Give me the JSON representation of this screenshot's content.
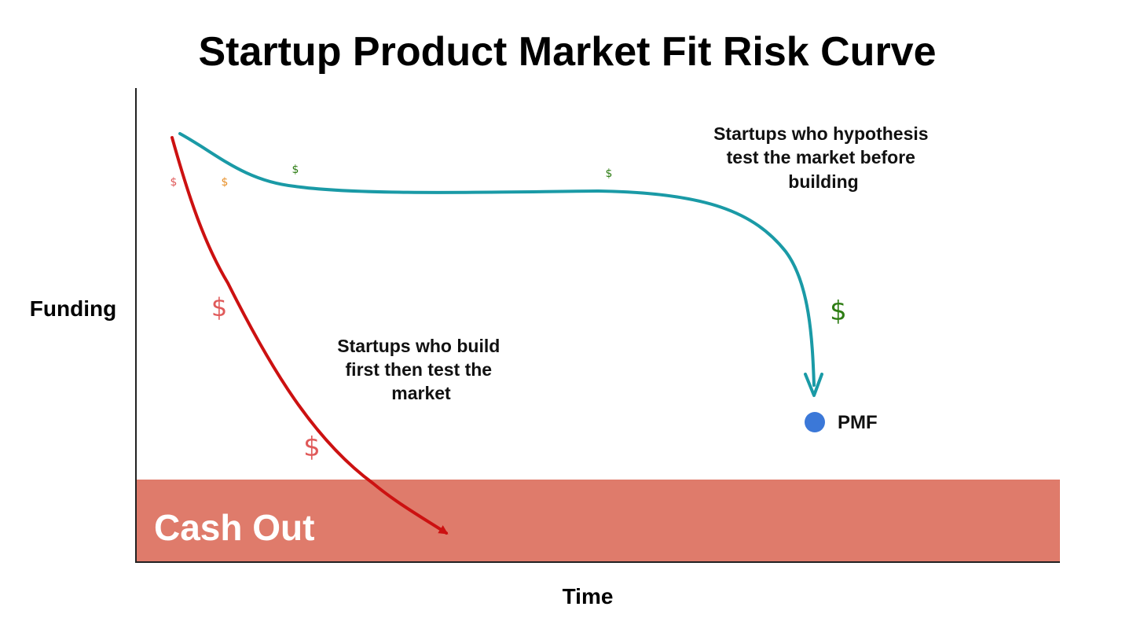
{
  "title": "Startup Product Market Fit Risk Curve",
  "axes": {
    "y_label": "Funding",
    "x_label": "Time"
  },
  "cash_out_zone": {
    "label": "Cash Out",
    "color": "#df7b6b"
  },
  "curves": {
    "build_first": {
      "color": "#cc1111",
      "annotation": [
        "Startups who build",
        "first then test the",
        "market"
      ]
    },
    "test_first": {
      "color": "#1a9aa6",
      "annotation": [
        "Startups who hypothesis",
        "test the market before",
        "building"
      ]
    }
  },
  "pmf_marker": {
    "label": "PMF",
    "color": "#3b78d8"
  },
  "dollar_signs": [
    {
      "symbol": "$",
      "color": "#e05a5a",
      "size": "small"
    },
    {
      "symbol": "$",
      "color": "#e8912b",
      "size": "small"
    },
    {
      "symbol": "$",
      "color": "#2e7d14",
      "size": "small"
    },
    {
      "symbol": "$",
      "color": "#2e7d14",
      "size": "small"
    },
    {
      "symbol": "$",
      "color": "#e05a5a",
      "size": "large"
    },
    {
      "symbol": "$",
      "color": "#e05a5a",
      "size": "large"
    },
    {
      "symbol": "$",
      "color": "#2e7d14",
      "size": "large"
    }
  ],
  "icons": {
    "arrowheads": "arrow-head-icon",
    "pmf_dot": "circle-dot-icon"
  }
}
